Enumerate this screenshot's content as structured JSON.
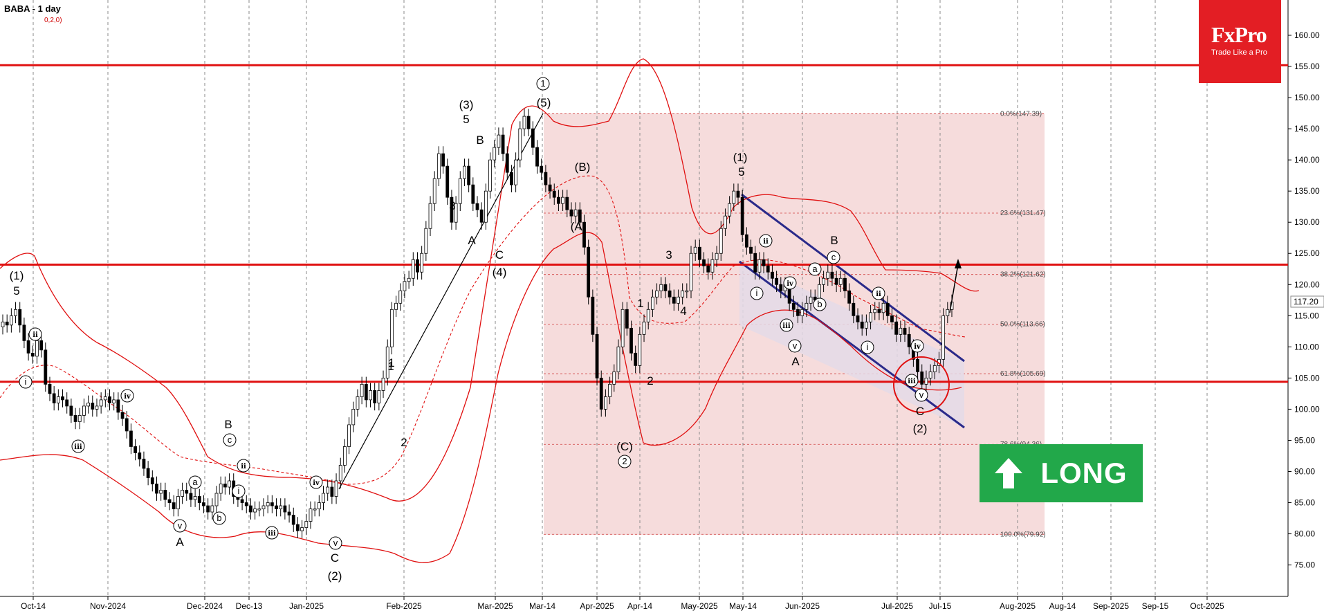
{
  "header": {
    "title": "BABA - 1 day",
    "subtitle": "0,2,0)"
  },
  "logo": {
    "brand": "FxPro",
    "tagline": "Trade Like a Pro"
  },
  "badge": {
    "label": "LONG"
  },
  "colors": {
    "candle": "#000000",
    "resistance": "#e01010",
    "bands": "#e01010",
    "channel": "#2a2a8a",
    "fib_box": "#f6dcdc",
    "channel_fill": "#e4dbe8",
    "badge": "#22a84a",
    "logo": "#e31e24"
  },
  "chart_data": {
    "type": "candlestick",
    "symbol": "BABA",
    "timeframe": "1 day",
    "ylim": [
      71,
      164
    ],
    "y_ticks": [
      75,
      80,
      85,
      90,
      95,
      100,
      105,
      110,
      115,
      120,
      125,
      130,
      135,
      140,
      145,
      150,
      155,
      160
    ],
    "y_tick_labels": [
      "75.00",
      "80.00",
      "85.00",
      "90.00",
      "95.00",
      "100.00",
      "105.00",
      "110.00",
      "115.00",
      "120.00",
      "125.00",
      "130.00",
      "135.00",
      "140.00",
      "145.00",
      "150.00",
      "155.00",
      "160.00"
    ],
    "x_ticks": [
      "Oct-14",
      "Nov-2024",
      "Dec-2024",
      "Dec-13",
      "Jan-2025",
      "Feb-2025",
      "Mar-2025",
      "Mar-14",
      "Apr-2025",
      "Apr-14",
      "May-2025",
      "May-14",
      "Jun-2025",
      "Jul-2025",
      "Jul-15",
      "Aug-2025",
      "Aug-14",
      "Sep-2025",
      "Sep-15",
      "Oct-2025"
    ],
    "current_price": "117.20",
    "horizontal_levels": [
      155.2,
      123.2,
      104.4
    ],
    "fibonacci": [
      {
        "label": "0.0%(147.39)",
        "price": 147.39
      },
      {
        "label": "23.6%(131.47)",
        "price": 131.47
      },
      {
        "label": "38.2%(121.62)",
        "price": 121.62
      },
      {
        "label": "50.0%(113.66)",
        "price": 113.66
      },
      {
        "label": "61.8%(105.69)",
        "price": 105.69
      },
      {
        "label": "78.6%(94.36)",
        "price": 94.36
      },
      {
        "label": "100.0%(79.92)",
        "price": 79.92
      }
    ],
    "wave_labels": [
      "(1)",
      "5",
      "(3)",
      "5",
      "B",
      "3",
      "A",
      "C",
      "(4)",
      "1",
      "(5)",
      "(B)",
      "(A)",
      "(C)",
      "2",
      "1",
      "2",
      "3",
      "4",
      "(1)",
      "5",
      "B",
      "A",
      "C",
      "(2)",
      "B",
      "A",
      "C",
      "(2)",
      "1",
      "2"
    ],
    "wave_labels_circled": [
      "1",
      "2",
      "i",
      "ii",
      "iii",
      "iv",
      "v",
      "a",
      "b",
      "c"
    ],
    "closes": [
      114.0,
      113.5,
      115.0,
      116.0,
      113.5,
      111.0,
      109.0,
      108.5,
      111.0,
      109.5,
      104.0,
      102.5,
      101.0,
      102.0,
      101.5,
      100.5,
      99.0,
      98.0,
      99.0,
      100.5,
      101.0,
      100.0,
      100.5,
      101.5,
      102.0,
      101.0,
      101.5,
      99.5,
      98.5,
      96.5,
      94.0,
      93.0,
      92.0,
      90.5,
      89.0,
      88.0,
      86.5,
      87.0,
      85.5,
      85.0,
      84.0,
      86.0,
      87.0,
      86.5,
      85.5,
      86.0,
      85.0,
      84.5,
      83.5,
      84.5,
      86.5,
      88.0,
      87.5,
      88.5,
      86.0,
      85.5,
      85.0,
      84.5,
      83.5,
      84.0,
      84.0,
      84.5,
      85.0,
      84.5,
      84.0,
      84.5,
      83.5,
      83.0,
      81.5,
      80.5,
      81.0,
      82.0,
      84.0,
      84.0,
      85.0,
      86.5,
      87.5,
      86.0,
      88.5,
      91.0,
      94.0,
      97.5,
      100.0,
      102.0,
      104.0,
      101.5,
      103.0,
      101.0,
      103.0,
      105.0,
      110.0,
      116.0,
      117.0,
      119.0,
      120.5,
      121.0,
      124.0,
      122.0,
      125.0,
      129.0,
      133.0,
      137.0,
      141.0,
      139.0,
      134.0,
      130.0,
      133.0,
      137.0,
      139.0,
      136.0,
      133.0,
      132.0,
      130.0,
      135.0,
      140.0,
      142.0,
      144.0,
      141.0,
      138.0,
      136.0,
      140.0,
      145.0,
      147.0,
      145.0,
      142.0,
      139.0,
      138.0,
      136.0,
      135.0,
      134.0,
      133.0,
      134.0,
      132.0,
      131.0,
      132.0,
      130.0,
      126.0,
      118.0,
      112.0,
      105.0,
      100.0,
      102.0,
      104.0,
      106.0,
      110.0,
      116.0,
      113.0,
      109.0,
      107.0,
      112.0,
      114.0,
      116.0,
      118.0,
      119.0,
      120.0,
      119.0,
      118.0,
      117.0,
      118.0,
      119.0,
      119.0,
      125.0,
      126.0,
      124.0,
      123.0,
      122.0,
      124.0,
      125.0,
      129.0,
      131.0,
      133.0,
      135.0,
      134.0,
      128.0,
      126.0,
      125.0,
      122.0,
      124.0,
      123.0,
      122.0,
      121.0,
      120.0,
      119.0,
      120.0,
      117.0,
      116.0,
      115.0,
      116.0,
      117.0,
      118.0,
      117.5,
      120.0,
      121.0,
      122.0,
      121.0,
      120.0,
      121.0,
      119.0,
      117.0,
      115.0,
      114.0,
      113.0,
      114.0,
      115.5,
      116.0,
      115.5,
      117.0,
      115.0,
      114.0,
      112.0,
      113.0,
      112.0,
      110.0,
      108.0,
      106.0,
      104.0,
      105.0,
      106.0,
      107.0,
      108.0,
      115.0,
      116.0,
      117.2
    ]
  }
}
